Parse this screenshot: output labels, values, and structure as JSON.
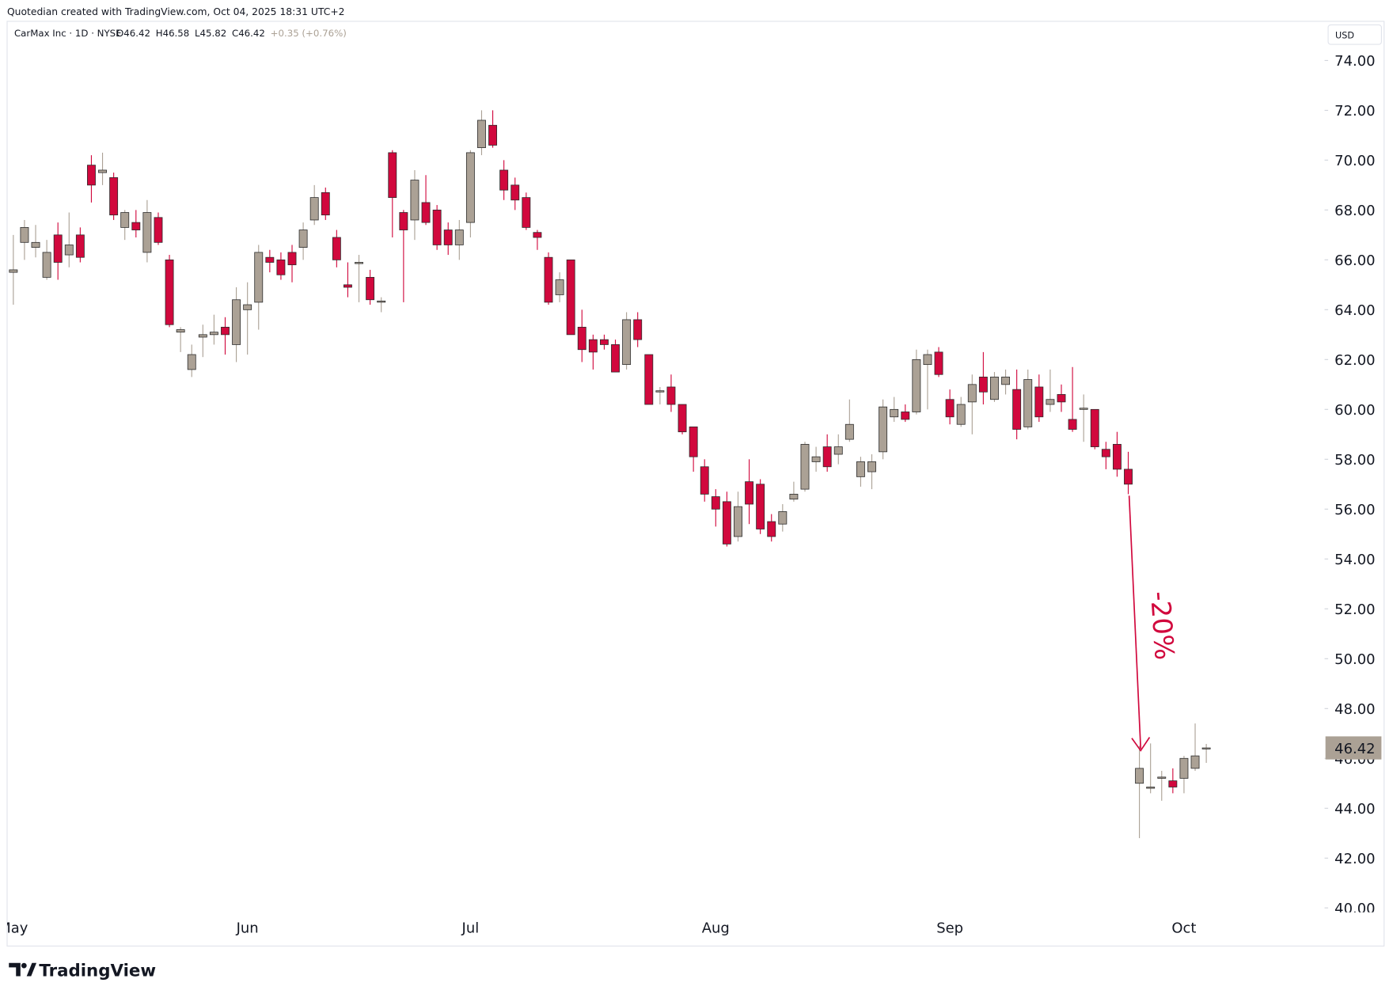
{
  "chart_data": {
    "type": "candlestick",
    "attribution": "Quotedian created with TradingView.com, Oct 04, 2025 18:31 UTC+2",
    "title": "CarMax Inc · 1D · NYSE",
    "legend_ohlc": [
      "O46.42",
      "H46.58",
      "L45.82",
      "C46.42",
      "+0.35 (+0.76%)"
    ],
    "currency": "USD",
    "brand": "TradingView",
    "annotation": "-20%",
    "last_price": 46.42,
    "up_color": "#aba195",
    "down_color": "#d1083d",
    "grid": false,
    "categories": [
      "May",
      null,
      null,
      null,
      null,
      null,
      null,
      null,
      null,
      null,
      null,
      null,
      null,
      null,
      null,
      null,
      null,
      null,
      null,
      null,
      null,
      "Jun",
      null,
      null,
      null,
      null,
      null,
      null,
      null,
      null,
      null,
      null,
      null,
      null,
      null,
      null,
      null,
      null,
      null,
      null,
      null,
      "Jul",
      null,
      null,
      null,
      null,
      null,
      null,
      null,
      null,
      null,
      null,
      null,
      null,
      null,
      null,
      null,
      null,
      null,
      null,
      null,
      null,
      null,
      "Aug",
      null,
      null,
      null,
      null,
      null,
      null,
      null,
      null,
      null,
      null,
      null,
      null,
      null,
      null,
      null,
      null,
      null,
      null,
      null,
      null,
      "Sep",
      null,
      null,
      null,
      null,
      null,
      null,
      null,
      null,
      null,
      null,
      null,
      null,
      null,
      null,
      null,
      null,
      null,
      null,
      null,
      null,
      "Oct",
      null,
      null
    ],
    "open": [
      65.5,
      66.7,
      66.5,
      65.3,
      67.0,
      66.2,
      67.0,
      69.8,
      69.5,
      69.3,
      67.3,
      67.5,
      66.3,
      67.7,
      66.0,
      63.1,
      61.6,
      62.9,
      63.0,
      63.3,
      62.6,
      64.0,
      64.3,
      66.1,
      66.0,
      66.3,
      66.5,
      67.6,
      68.7,
      66.9,
      65.0,
      65.85,
      65.3,
      64.3,
      70.3,
      67.9,
      67.6,
      68.3,
      68.0,
      67.2,
      66.6,
      67.5,
      70.5,
      71.4,
      69.6,
      69.0,
      68.5,
      67.1,
      66.1,
      64.6,
      66.0,
      63.3,
      62.8,
      62.8,
      62.6,
      61.8,
      63.6,
      62.2,
      60.7,
      60.9,
      60.2,
      59.3,
      57.7,
      56.5,
      56.3,
      54.9,
      57.1,
      57.0,
      55.5,
      55.4,
      56.4,
      56.8,
      57.9,
      58.5,
      58.2,
      58.8,
      57.3,
      57.5,
      58.3,
      59.7,
      59.9,
      59.9,
      61.8,
      62.3,
      60.4,
      59.4,
      60.3,
      61.3,
      60.4,
      61.0,
      60.8,
      59.3,
      60.9,
      60.2,
      60.6,
      59.6,
      60.0,
      60.0,
      58.4,
      58.6,
      57.6,
      45.0,
      44.8,
      45.2,
      45.1,
      45.2,
      45.6,
      46.42
    ],
    "high": [
      67.0,
      67.6,
      67.4,
      66.8,
      67.5,
      67.9,
      67.3,
      70.2,
      70.3,
      69.5,
      68.0,
      68.0,
      68.4,
      67.9,
      66.2,
      63.3,
      62.6,
      63.4,
      63.8,
      63.7,
      64.9,
      65.1,
      66.6,
      66.4,
      66.3,
      66.6,
      67.5,
      69.0,
      68.9,
      67.2,
      65.9,
      66.2,
      65.6,
      64.5,
      70.4,
      68.0,
      69.6,
      69.4,
      68.2,
      67.5,
      67.6,
      70.4,
      72.0,
      72.0,
      70.0,
      69.3,
      68.7,
      67.2,
      66.3,
      65.5,
      66.0,
      64.0,
      63.0,
      63.0,
      62.8,
      63.9,
      63.9,
      62.2,
      60.9,
      61.4,
      60.2,
      59.3,
      58.0,
      56.8,
      56.7,
      56.7,
      58.0,
      57.2,
      55.8,
      56.2,
      57.1,
      58.7,
      58.5,
      59.0,
      59.0,
      60.4,
      58.1,
      58.2,
      60.4,
      60.5,
      60.2,
      62.4,
      62.4,
      62.5,
      60.8,
      60.5,
      61.4,
      62.3,
      61.5,
      61.6,
      61.6,
      61.6,
      61.4,
      61.6,
      61.0,
      61.7,
      60.6,
      60.0,
      58.7,
      59.1,
      58.3,
      46.5,
      46.6,
      45.5,
      45.6,
      46.1,
      47.4,
      46.58
    ],
    "low": [
      64.2,
      66.0,
      66.1,
      65.2,
      65.2,
      65.7,
      65.9,
      68.3,
      69.0,
      67.6,
      66.8,
      66.9,
      65.9,
      66.6,
      63.3,
      62.3,
      61.3,
      62.1,
      62.6,
      62.2,
      61.9,
      62.2,
      63.2,
      65.5,
      65.2,
      65.1,
      66.0,
      67.4,
      67.6,
      65.7,
      64.5,
      64.3,
      64.2,
      63.9,
      66.9,
      64.3,
      66.8,
      67.4,
      66.4,
      66.2,
      66.0,
      66.9,
      70.2,
      70.5,
      68.4,
      68.0,
      67.2,
      66.4,
      64.2,
      64.3,
      63.0,
      61.9,
      61.6,
      62.4,
      61.5,
      61.6,
      62.5,
      60.2,
      60.2,
      59.9,
      59.0,
      57.5,
      56.3,
      55.3,
      54.5,
      54.7,
      55.4,
      55.0,
      54.7,
      55.1,
      56.3,
      56.7,
      57.5,
      57.5,
      57.8,
      58.7,
      56.9,
      56.8,
      58.0,
      59.5,
      59.5,
      59.8,
      60.0,
      61.3,
      59.4,
      59.3,
      59.0,
      60.2,
      60.3,
      60.6,
      58.8,
      59.2,
      59.5,
      59.9,
      59.9,
      59.1,
      58.7,
      58.4,
      57.6,
      57.3,
      56.6,
      42.8,
      44.6,
      44.3,
      44.6,
      44.6,
      45.5,
      45.82
    ],
    "close": [
      65.6,
      67.3,
      66.7,
      66.3,
      65.9,
      66.6,
      66.1,
      69.0,
      69.6,
      67.8,
      67.9,
      67.2,
      67.9,
      66.7,
      63.4,
      63.2,
      62.2,
      63.0,
      63.1,
      63.0,
      64.4,
      64.2,
      66.3,
      65.9,
      65.4,
      65.8,
      67.2,
      68.5,
      67.8,
      66.0,
      64.9,
      65.9,
      64.4,
      64.35,
      68.5,
      67.2,
      69.2,
      67.5,
      66.6,
      66.6,
      67.2,
      70.3,
      71.6,
      70.6,
      68.8,
      68.4,
      67.3,
      66.9,
      64.3,
      65.2,
      63.0,
      62.4,
      62.3,
      62.6,
      61.5,
      63.6,
      62.8,
      60.2,
      60.75,
      60.2,
      59.1,
      58.1,
      56.6,
      56.0,
      54.6,
      56.1,
      56.2,
      55.2,
      54.9,
      55.9,
      56.6,
      58.6,
      58.1,
      57.7,
      58.5,
      59.4,
      57.9,
      57.9,
      60.1,
      60.0,
      59.6,
      62.0,
      62.2,
      61.4,
      59.7,
      60.2,
      61.0,
      60.7,
      61.3,
      61.3,
      59.2,
      61.2,
      59.7,
      60.4,
      60.3,
      59.2,
      60.05,
      58.5,
      58.1,
      57.6,
      57.0,
      45.6,
      44.85,
      45.25,
      44.85,
      46.0,
      46.1,
      46.42
    ],
    "ylim": [
      39.79,
      75.57
    ],
    "yticks": [
      {
        "value": 40,
        "label": "40.00"
      },
      {
        "value": 42,
        "label": "42.00"
      },
      {
        "value": 44,
        "label": "44.00"
      },
      {
        "value": 46,
        "label": "46.00"
      },
      {
        "value": 48,
        "label": "48.00"
      },
      {
        "value": 50,
        "label": "50.00"
      },
      {
        "value": 52,
        "label": "52.00"
      },
      {
        "value": 54,
        "label": "54.00"
      },
      {
        "value": 56,
        "label": "56.00"
      },
      {
        "value": 58,
        "label": "58.00"
      },
      {
        "value": 60,
        "label": "60.00"
      },
      {
        "value": 62,
        "label": "62.00"
      },
      {
        "value": 64,
        "label": "64.00"
      },
      {
        "value": 66,
        "label": "66.00"
      },
      {
        "value": 68,
        "label": "68.00"
      },
      {
        "value": 70,
        "label": "70.00"
      },
      {
        "value": 72,
        "label": "72.00"
      },
      {
        "value": 74,
        "label": "74.00"
      }
    ]
  }
}
